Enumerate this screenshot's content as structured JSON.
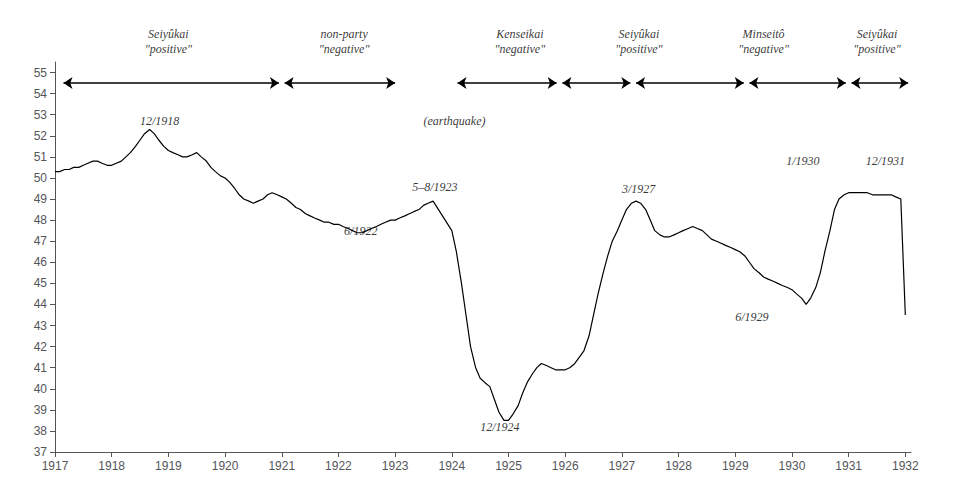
{
  "chart_data": {
    "type": "line",
    "color": "#000000",
    "grid": false,
    "xlim": [
      1917.0,
      1932.1
    ],
    "xticks": [
      1917,
      1918,
      1919,
      1920,
      1921,
      1922,
      1923,
      1924,
      1925,
      1926,
      1927,
      1928,
      1929,
      1930,
      1931,
      1932
    ],
    "ylim": [
      37,
      55.5
    ],
    "yticks": [
      37,
      38,
      39,
      40,
      41,
      42,
      43,
      44,
      45,
      46,
      47,
      48,
      49,
      50,
      51,
      52,
      53,
      54,
      55
    ],
    "x": [
      1917.0,
      1917.08,
      1917.17,
      1917.25,
      1917.33,
      1917.42,
      1917.5,
      1917.58,
      1917.67,
      1917.75,
      1917.83,
      1917.92,
      1918.0,
      1918.08,
      1918.17,
      1918.25,
      1918.33,
      1918.42,
      1918.5,
      1918.58,
      1918.67,
      1918.75,
      1918.83,
      1918.92,
      1919.0,
      1919.08,
      1919.17,
      1919.25,
      1919.33,
      1919.42,
      1919.5,
      1919.58,
      1919.67,
      1919.75,
      1919.83,
      1919.92,
      1920.0,
      1920.08,
      1920.17,
      1920.25,
      1920.33,
      1920.42,
      1920.5,
      1920.58,
      1920.67,
      1920.75,
      1920.83,
      1920.92,
      1921.0,
      1921.08,
      1921.17,
      1921.25,
      1921.33,
      1921.42,
      1921.5,
      1921.58,
      1921.67,
      1921.75,
      1921.83,
      1921.92,
      1922.0,
      1922.08,
      1922.17,
      1922.25,
      1922.33,
      1922.42,
      1922.5,
      1922.58,
      1922.67,
      1922.75,
      1922.83,
      1922.92,
      1923.0,
      1923.08,
      1923.17,
      1923.25,
      1923.33,
      1923.42,
      1923.5,
      1923.58,
      1923.67,
      1924.0,
      1924.08,
      1924.17,
      1924.25,
      1924.33,
      1924.42,
      1924.5,
      1924.58,
      1924.67,
      1924.75,
      1924.83,
      1924.92,
      1925.0,
      1925.08,
      1925.17,
      1925.25,
      1925.33,
      1925.42,
      1925.5,
      1925.58,
      1925.67,
      1925.75,
      1925.83,
      1925.92,
      1926.0,
      1926.08,
      1926.17,
      1926.25,
      1926.33,
      1926.42,
      1926.5,
      1926.58,
      1926.67,
      1926.75,
      1926.83,
      1926.92,
      1927.0,
      1927.08,
      1927.17,
      1927.25,
      1927.33,
      1927.42,
      1927.5,
      1927.58,
      1927.67,
      1927.75,
      1927.83,
      1927.92,
      1928.0,
      1928.08,
      1928.17,
      1928.25,
      1928.33,
      1928.42,
      1928.5,
      1928.58,
      1928.67,
      1928.75,
      1928.83,
      1928.92,
      1929.0,
      1929.08,
      1929.17,
      1929.25,
      1929.33,
      1929.42,
      1929.5,
      1929.58,
      1929.67,
      1929.75,
      1929.83,
      1929.92,
      1930.0,
      1930.08,
      1930.17,
      1930.25,
      1930.33,
      1930.42,
      1930.5,
      1930.58,
      1930.67,
      1930.75,
      1930.83,
      1930.92,
      1931.0,
      1931.08,
      1931.17,
      1931.25,
      1931.33,
      1931.42,
      1931.5,
      1931.58,
      1931.67,
      1931.75,
      1931.83,
      1931.92,
      1932.0
    ],
    "values": [
      50.3,
      50.3,
      50.4,
      50.4,
      50.5,
      50.5,
      50.6,
      50.7,
      50.8,
      50.8,
      50.7,
      50.6,
      50.6,
      50.7,
      50.8,
      51.0,
      51.2,
      51.5,
      51.8,
      52.1,
      52.3,
      52.1,
      51.8,
      51.5,
      51.3,
      51.2,
      51.1,
      51.0,
      51.0,
      51.1,
      51.2,
      51.0,
      50.8,
      50.5,
      50.3,
      50.1,
      50.0,
      49.8,
      49.5,
      49.2,
      49.0,
      48.9,
      48.8,
      48.9,
      49.0,
      49.2,
      49.3,
      49.2,
      49.1,
      49.0,
      48.8,
      48.6,
      48.5,
      48.3,
      48.2,
      48.1,
      48.0,
      47.9,
      47.9,
      47.8,
      47.8,
      47.7,
      47.6,
      47.5,
      47.4,
      47.4,
      47.5,
      47.6,
      47.7,
      47.8,
      47.9,
      48.0,
      48.0,
      48.1,
      48.2,
      48.3,
      48.4,
      48.5,
      48.7,
      48.8,
      48.9,
      47.5,
      46.5,
      45.0,
      43.5,
      42.0,
      41.0,
      40.5,
      40.3,
      40.1,
      39.5,
      38.9,
      38.5,
      38.5,
      38.8,
      39.2,
      39.8,
      40.3,
      40.7,
      41.0,
      41.2,
      41.1,
      41.0,
      40.9,
      40.9,
      40.9,
      41.0,
      41.2,
      41.5,
      41.8,
      42.5,
      43.5,
      44.5,
      45.5,
      46.3,
      47.0,
      47.5,
      48.0,
      48.5,
      48.8,
      48.9,
      48.8,
      48.5,
      48.0,
      47.5,
      47.3,
      47.2,
      47.2,
      47.3,
      47.4,
      47.5,
      47.6,
      47.7,
      47.6,
      47.5,
      47.3,
      47.1,
      47.0,
      46.9,
      46.8,
      46.7,
      46.6,
      46.5,
      46.3,
      46.0,
      45.7,
      45.5,
      45.3,
      45.2,
      45.1,
      45.0,
      44.9,
      44.8,
      44.7,
      44.5,
      44.3,
      44.0,
      44.3,
      44.8,
      45.5,
      46.5,
      47.5,
      48.5,
      49.0,
      49.2,
      49.3,
      49.3,
      49.3,
      49.3,
      49.3,
      49.2,
      49.2,
      49.2,
      49.2,
      49.2,
      49.1,
      49.0,
      43.5
    ],
    "annotations": [
      {
        "text": "12/1918",
        "x": 1918.5,
        "y": 52.4
      },
      {
        "text": "(earthquake)",
        "x": 1923.5,
        "y": 52.4
      },
      {
        "text": "6/1922",
        "x": 1922.1,
        "y": 47.2
      },
      {
        "text": "5–8/1923",
        "x": 1923.3,
        "y": 49.3
      },
      {
        "text": "12/1924",
        "x": 1924.5,
        "y": 37.9
      },
      {
        "text": "3/1927",
        "x": 1927.0,
        "y": 49.2
      },
      {
        "text": "6/1929",
        "x": 1929.0,
        "y": 43.1
      },
      {
        "text": "1/1930",
        "x": 1929.9,
        "y": 50.5
      },
      {
        "text": "12/1931",
        "x": 1931.3,
        "y": 50.5
      }
    ],
    "period_labels": [
      {
        "text": "Seiyûkai\n\"positive\"",
        "x": 1919.0
      },
      {
        "text": "non-party\n\"negative\"",
        "x": 1922.1
      },
      {
        "text": "Kenseikai\n\"negative\"",
        "x": 1925.2
      },
      {
        "text": "Seiyûkai\n\"positive\"",
        "x": 1927.3
      },
      {
        "text": "Minseitô\n\"negative\"",
        "x": 1929.5
      },
      {
        "text": "Seiyûkai\n\"positive\"",
        "x": 1931.5
      }
    ],
    "arrows": [
      {
        "x1": 1917.15,
        "x2": 1920.95,
        "y": 54.5
      },
      {
        "x1": 1921.05,
        "x2": 1923.0,
        "y": 54.5
      },
      {
        "x1": 1924.1,
        "x2": 1925.85,
        "y": 54.5
      },
      {
        "x1": 1925.95,
        "x2": 1927.15,
        "y": 54.5
      },
      {
        "x1": 1927.25,
        "x2": 1929.15,
        "y": 54.5
      },
      {
        "x1": 1929.25,
        "x2": 1930.95,
        "y": 54.5
      },
      {
        "x1": 1931.05,
        "x2": 1932.05,
        "y": 54.5
      }
    ]
  }
}
